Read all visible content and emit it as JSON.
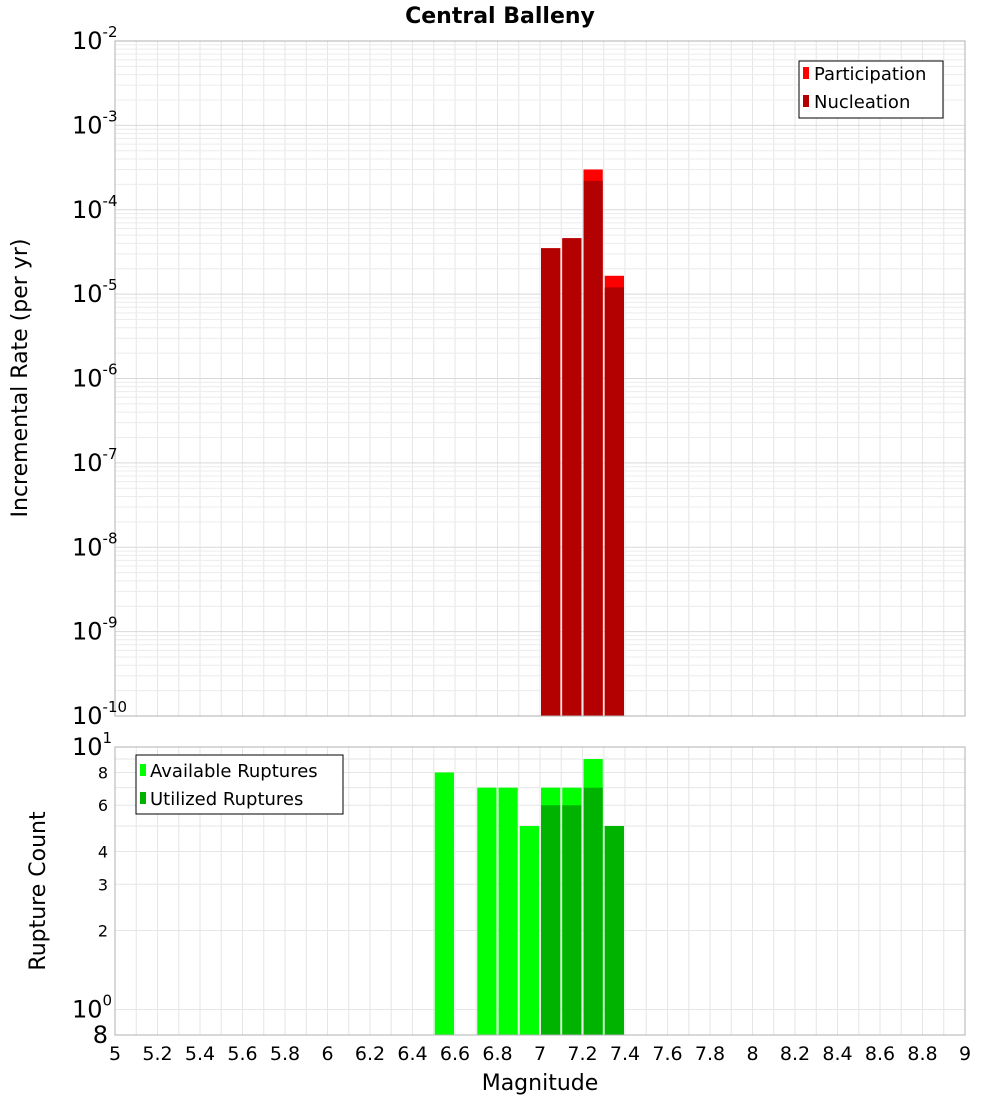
{
  "chart_data": [
    {
      "type": "bar",
      "title": "Central Balleny",
      "xlabel": "",
      "ylabel": "Incremental Rate (per yr)",
      "yscale": "log",
      "ylim": [
        1e-10,
        0.01
      ],
      "xlim": [
        5,
        9
      ],
      "bar_width": 0.1,
      "y_ticks": [
        {
          "base": "10",
          "exp": "-2"
        },
        {
          "base": "10",
          "exp": "-3"
        },
        {
          "base": "10",
          "exp": "-4"
        },
        {
          "base": "10",
          "exp": "-5"
        },
        {
          "base": "10",
          "exp": "-6"
        },
        {
          "base": "10",
          "exp": "-7"
        },
        {
          "base": "10",
          "exp": "-8"
        },
        {
          "base": "10",
          "exp": "-9"
        },
        {
          "base": "10",
          "exp": "-10"
        }
      ],
      "legend_position": "top-right",
      "series": [
        {
          "name": "Participation",
          "color": "#ff0000",
          "x": [
            7.05,
            7.15,
            7.25,
            7.35
          ],
          "values": [
            3.5e-05,
            4.6e-05,
            0.0003,
            1.65e-05
          ]
        },
        {
          "name": "Nucleation",
          "color": "#b30000",
          "x": [
            7.05,
            7.15,
            7.25,
            7.35
          ],
          "values": [
            3.5e-05,
            4.6e-05,
            0.00022,
            1.2e-05
          ]
        }
      ]
    },
    {
      "type": "bar",
      "title": "",
      "xlabel": "Magnitude",
      "ylabel": "Rupture Count",
      "yscale": "log",
      "ylim": [
        0.8,
        10
      ],
      "xlim": [
        5,
        9
      ],
      "bar_width": 0.1,
      "x_ticks": [
        "5",
        "5.2",
        "5.4",
        "5.6",
        "5.8",
        "6",
        "6.2",
        "6.4",
        "6.6",
        "6.8",
        "7",
        "7.2",
        "7.4",
        "7.6",
        "7.8",
        "8",
        "8.2",
        "8.4",
        "8.6",
        "8.8",
        "9"
      ],
      "y_ticks": [
        "8",
        "6",
        "4",
        "3",
        "2"
      ],
      "y_ticks_pow": [
        {
          "base": "10",
          "exp": "1"
        },
        {
          "base": "10",
          "exp": "0"
        }
      ],
      "y_ticks_pow_suffix": "8",
      "legend_position": "top-left",
      "series": [
        {
          "name": "Available Ruptures",
          "color": "#00ff00",
          "x": [
            6.55,
            6.75,
            6.85,
            6.95,
            7.05,
            7.15,
            7.25,
            7.35
          ],
          "values": [
            8,
            7,
            7,
            5,
            7,
            7,
            9,
            5
          ]
        },
        {
          "name": "Utilized Ruptures",
          "color": "#00b300",
          "x": [
            7.05,
            7.15,
            7.25,
            7.35
          ],
          "values": [
            6,
            6,
            7,
            5
          ]
        }
      ]
    }
  ]
}
